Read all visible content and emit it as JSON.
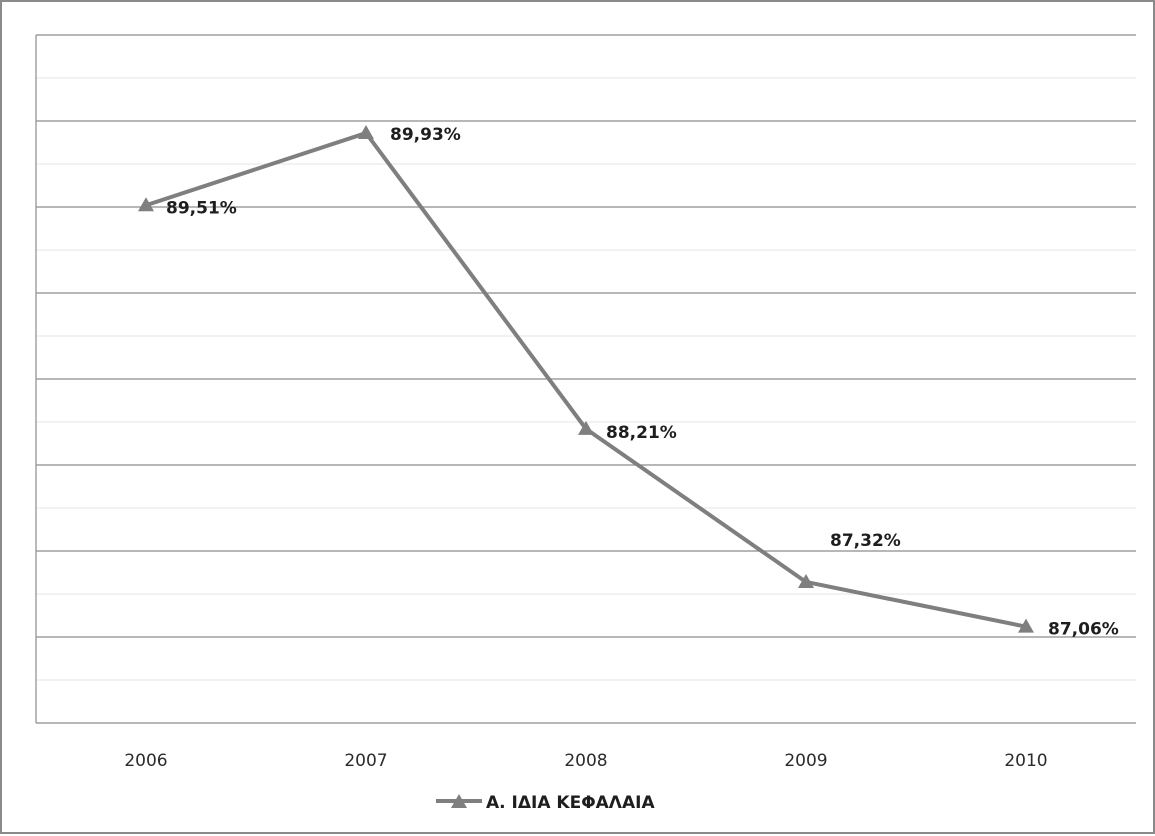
{
  "chart_data": {
    "type": "line",
    "title": "",
    "xlabel": "",
    "ylabel": "",
    "categories": [
      "2006",
      "2007",
      "2008",
      "2009",
      "2010"
    ],
    "series": [
      {
        "name": "Α. ΙΔΙΑ ΚΕΦΑΛΑΙΑ",
        "values": [
          89.51,
          89.93,
          88.21,
          87.32,
          87.06
        ],
        "labels": [
          "89,51%",
          "89,93%",
          "88,21%",
          "87,32%",
          "87,06%"
        ],
        "color": "#7f7f7f",
        "marker": "triangle"
      }
    ],
    "ylim": [
      86.5,
      90.5
    ],
    "grid": true,
    "y_tick_labels_visible": false,
    "legend": "bottom"
  }
}
